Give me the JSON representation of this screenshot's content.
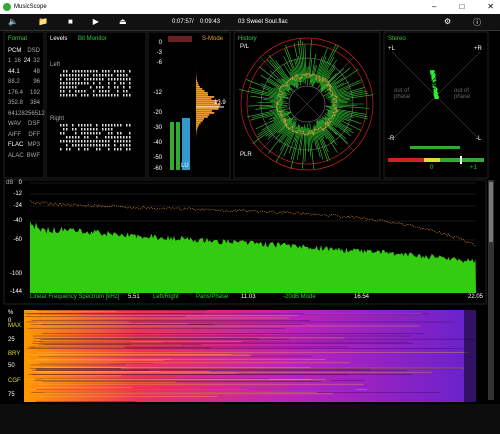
{
  "window": {
    "title": "MusicScope"
  },
  "toolbar": {
    "position": "0:07:57",
    "separator": "/",
    "duration": "0:09:43",
    "file": "03 Sweet Soul.flac"
  },
  "format": {
    "title": "Format",
    "headers": [
      "PCM",
      "DSD"
    ],
    "rows": [
      [
        "1",
        "16",
        "24",
        "32"
      ],
      [
        "44.1",
        "48"
      ],
      [
        "88.2",
        "96"
      ],
      [
        "176.4",
        "192"
      ],
      [
        "352.8",
        "384"
      ],
      [
        "64",
        "128",
        "256",
        "512"
      ],
      [
        "WAV",
        "DSF"
      ],
      [
        "AIFF",
        "DFF"
      ],
      [
        "FLAC",
        "MP3"
      ],
      [
        "ALAC",
        "BWF"
      ]
    ]
  },
  "levels": {
    "title": "Levels",
    "subtitle": "Bit Monitor",
    "left": "Left",
    "right": "Right",
    "scale": [
      "0",
      "-3",
      "-6",
      "-12",
      "-20",
      "-30",
      "-40",
      "-50",
      "-60"
    ],
    "mode": "S-Mode",
    "loudness": "13.9",
    "unit": "LU"
  },
  "history": {
    "title": "History",
    "top": "P/L",
    "bottom": "PLR"
  },
  "stereo": {
    "title": "Stereo",
    "top_left": "+L",
    "top_right": "+R",
    "bottom_left": "-R",
    "bottom_right": "-L",
    "phase_left": "out of phase",
    "phase_right": "out of phase",
    "zero": "0",
    "one": "+1"
  },
  "spectrum": {
    "unit": "dB",
    "scale": [
      "0",
      "-12",
      "-24",
      "-40",
      "-60",
      "-100",
      "-144"
    ],
    "footer": [
      "Linear Frequency Spectrum [kHz]",
      "5.51",
      "Left/Right",
      "Pans/Phase",
      "11.03",
      "-20dB Mode",
      "16.54",
      "22.05"
    ]
  },
  "spectrogram": {
    "scale": [
      "%",
      "0",
      "MAX",
      "25",
      "BRY",
      "50",
      "CGF",
      "75"
    ]
  }
}
